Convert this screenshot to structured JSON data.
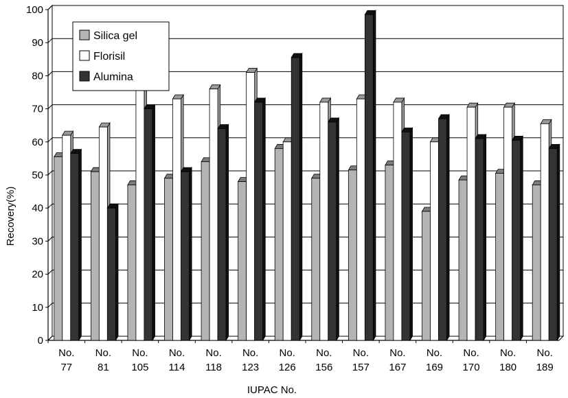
{
  "chart_data": {
    "type": "bar",
    "xlabel": "IUPAC No.",
    "ylabel": "Recovery(%)",
    "ylim": [
      0,
      100
    ],
    "yticks": [
      0,
      10,
      20,
      30,
      40,
      50,
      60,
      70,
      80,
      90,
      100
    ],
    "grid": true,
    "legend_position": "top-left",
    "categories": [
      [
        "No.",
        "77"
      ],
      [
        "No.",
        "81"
      ],
      [
        "No.",
        "105"
      ],
      [
        "No.",
        "114"
      ],
      [
        "No.",
        "118"
      ],
      [
        "No.",
        "123"
      ],
      [
        "No.",
        "126"
      ],
      [
        "No.",
        "156"
      ],
      [
        "No.",
        "157"
      ],
      [
        "No.",
        "167"
      ],
      [
        "No.",
        "169"
      ],
      [
        "No.",
        "170"
      ],
      [
        "No.",
        "180"
      ],
      [
        "No.",
        "189"
      ]
    ],
    "series": [
      {
        "name": "Silica gel",
        "color": "#b4b4b4",
        "side_color": "#7c7c7c",
        "values": [
          55.5,
          51,
          47,
          49,
          54,
          48,
          58,
          49,
          51.5,
          53,
          39,
          48.5,
          50.5,
          47
        ]
      },
      {
        "name": "Florisil",
        "color": "#ffffff",
        "side_color": "#9a9a9a",
        "values": [
          62,
          64.5,
          76,
          73,
          76,
          81,
          60,
          72,
          73,
          72,
          60,
          70.5,
          70.5,
          65.5
        ]
      },
      {
        "name": "Alumina",
        "color": "#333333",
        "side_color": "#111111",
        "values": [
          56.5,
          40,
          70,
          51,
          64,
          72,
          85.5,
          66,
          98.5,
          63,
          67,
          61,
          60.5,
          58
        ]
      }
    ]
  }
}
